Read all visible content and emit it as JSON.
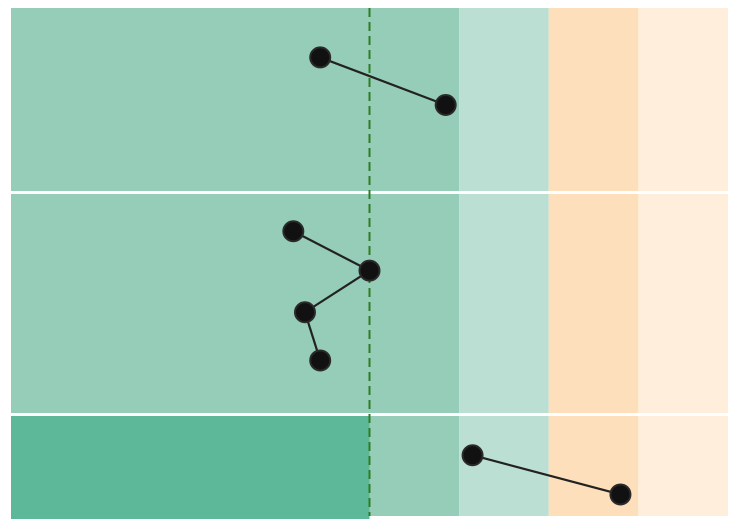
{
  "chart_data": {
    "type": "scatter",
    "title": "",
    "xlabel": "",
    "ylabel": "",
    "xlim": [
      0,
      8
    ],
    "grid": false,
    "zones": [
      {
        "x0": 0,
        "x1": 5,
        "color": "#96cdb9"
      },
      {
        "x0": 5,
        "x1": 6,
        "color": "#bcdfd3"
      },
      {
        "x0": 6,
        "x1": 7,
        "color": "#fedfbb"
      },
      {
        "x0": 7,
        "x1": 8,
        "color": "#feeedb"
      }
    ],
    "rows": [
      {
        "height": 183,
        "highlight": null
      },
      {
        "height": 219,
        "highlight": null
      },
      {
        "height": 106,
        "highlight": {
          "x0": 0,
          "x1": 4,
          "color": "#5cb898"
        }
      }
    ],
    "reference_line": {
      "x": 4,
      "color": "#2e7d23",
      "style": "dashed"
    },
    "point_color": "#111111",
    "edge_color": "#222222",
    "points": [
      {
        "id": "p1",
        "row": 0,
        "x": 3.45,
        "y": 0.73
      },
      {
        "id": "p2",
        "row": 0,
        "x": 4.85,
        "y": 0.47
      },
      {
        "id": "p3",
        "row": 1,
        "x": 3.15,
        "y": 0.83
      },
      {
        "id": "p4",
        "row": 1,
        "x": 4.0,
        "y": 0.65
      },
      {
        "id": "p5",
        "row": 1,
        "x": 3.28,
        "y": 0.46
      },
      {
        "id": "p6",
        "row": 1,
        "x": 3.45,
        "y": 0.24
      },
      {
        "id": "p7",
        "row": 2,
        "x": 5.15,
        "y": 0.63
      },
      {
        "id": "p8",
        "row": 2,
        "x": 6.8,
        "y": 0.26
      }
    ],
    "edges": [
      [
        "p1",
        "p2"
      ],
      [
        "p3",
        "p4"
      ],
      [
        "p4",
        "p5"
      ],
      [
        "p5",
        "p6"
      ],
      [
        "p7",
        "p8"
      ]
    ]
  }
}
